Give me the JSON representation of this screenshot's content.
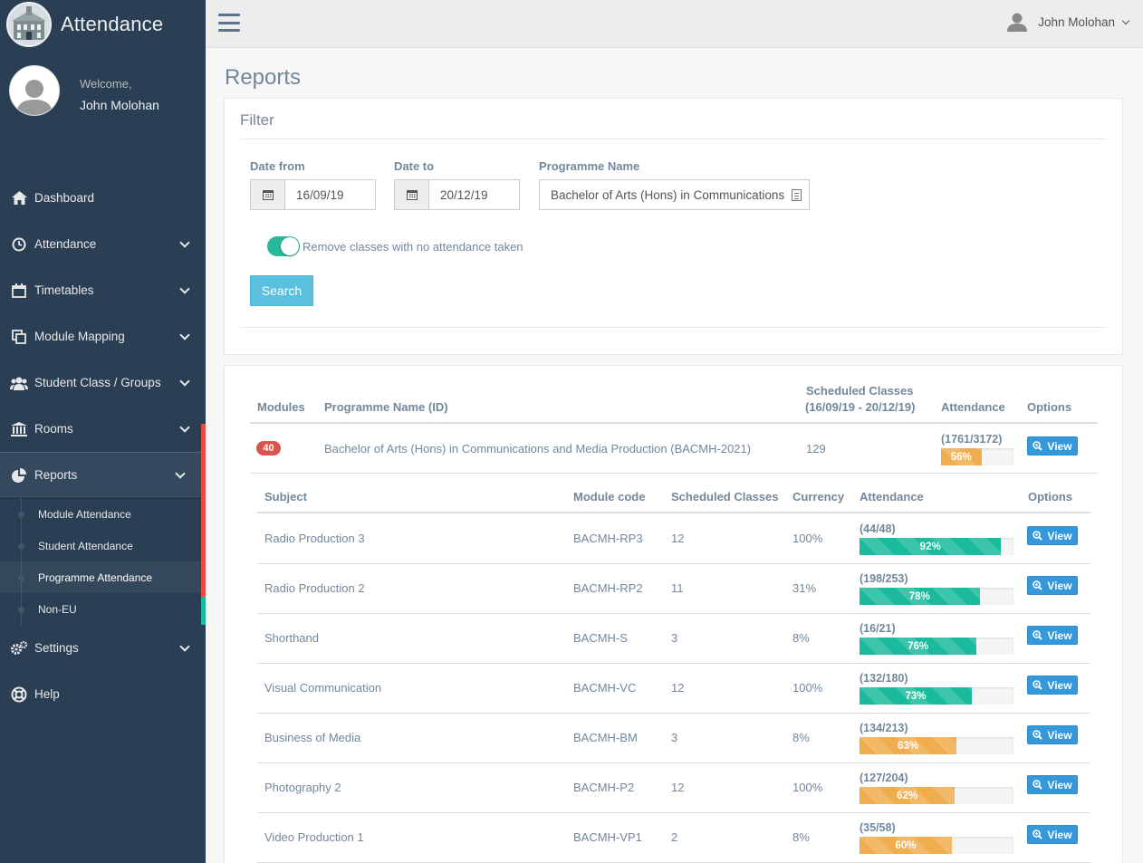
{
  "app": {
    "title": "Attendance"
  },
  "profile": {
    "welcome": "Welcome,",
    "name": "John Molohan"
  },
  "topnav": {
    "user_name": "John Molohan"
  },
  "sidebar": {
    "items": [
      {
        "label": "Dashboard",
        "icon": "home-icon"
      },
      {
        "label": "Attendance",
        "icon": "clock-icon"
      },
      {
        "label": "Timetables",
        "icon": "calendar-icon"
      },
      {
        "label": "Module Mapping",
        "icon": "clone-icon"
      },
      {
        "label": "Student Class / Groups",
        "icon": "users-icon"
      },
      {
        "label": "Rooms",
        "icon": "bank-icon"
      },
      {
        "label": "Reports",
        "icon": "pie-chart-icon"
      },
      {
        "label": "Settings",
        "icon": "cogs-icon"
      },
      {
        "label": "Help",
        "icon": "life-ring-icon"
      }
    ],
    "reports_sub": [
      "Module Attendance",
      "Student Attendance",
      "Programme Attendance",
      "Non-EU"
    ]
  },
  "page": {
    "title": "Reports"
  },
  "filter": {
    "title": "Filter",
    "date_from_label": "Date from",
    "date_from": "16/09/19",
    "date_to_label": "Date to",
    "date_to": "20/12/19",
    "programme_label": "Programme Name",
    "programme": "Bachelor of Arts (Hons) in Communications",
    "toggle_label": "Remove classes with no attendance taken",
    "search_label": "Search"
  },
  "programme_table": {
    "headers": {
      "modules": "Modules",
      "name": "Programme Name (ID)",
      "scheduled_line1": "Scheduled Classes",
      "scheduled_line2": "(16/09/19 - 20/12/19)",
      "attendance": "Attendance",
      "options": "Options"
    },
    "row": {
      "modules": "40",
      "name": "Bachelor of Arts (Hons) in Communications and Media Production (BACMH-2021)",
      "scheduled": "129",
      "count": "(1761/3172)",
      "percent": 56,
      "percent_label": "56%",
      "color": "orange",
      "view": "View"
    }
  },
  "module_table": {
    "headers": {
      "subject": "Subject",
      "code": "Module code",
      "scheduled": "Scheduled Classes",
      "currency": "Currency",
      "attendance": "Attendance",
      "options": "Options"
    },
    "rows": [
      {
        "subject": "Radio Production 3",
        "code": "BACMH-RP3",
        "scheduled": "12",
        "currency": "100%",
        "count": "(44/48)",
        "percent": 92,
        "percent_label": "92%",
        "color": "green",
        "view": "View"
      },
      {
        "subject": "Radio Production 2",
        "code": "BACMH-RP2",
        "scheduled": "11",
        "currency": "31%",
        "count": "(198/253)",
        "percent": 78,
        "percent_label": "78%",
        "color": "green",
        "view": "View"
      },
      {
        "subject": "Shorthand",
        "code": "BACMH-S",
        "scheduled": "3",
        "currency": "8%",
        "count": "(16/21)",
        "percent": 76,
        "percent_label": "76%",
        "color": "green",
        "view": "View"
      },
      {
        "subject": "Visual Communication",
        "code": "BACMH-VC",
        "scheduled": "12",
        "currency": "100%",
        "count": "(132/180)",
        "percent": 73,
        "percent_label": "73%",
        "color": "green",
        "view": "View"
      },
      {
        "subject": "Business of Media",
        "code": "BACMH-BM",
        "scheduled": "3",
        "currency": "8%",
        "count": "(134/213)",
        "percent": 63,
        "percent_label": "63%",
        "color": "orange",
        "view": "View"
      },
      {
        "subject": "Photography 2",
        "code": "BACMH-P2",
        "scheduled": "12",
        "currency": "100%",
        "count": "(127/204)",
        "percent": 62,
        "percent_label": "62%",
        "color": "orange",
        "view": "View"
      },
      {
        "subject": "Video Production 1",
        "code": "BACMH-VP1",
        "scheduled": "2",
        "currency": "8%",
        "count": "(35/58)",
        "percent": 60,
        "percent_label": "60%",
        "color": "orange",
        "view": "View"
      }
    ]
  },
  "colors": {
    "sidebar_bg": "#2a3f54",
    "accent": "#1abb9c",
    "danger": "#d9534f",
    "warning": "#f0ad4e",
    "info": "#5bc0de",
    "primary": "#3498db"
  }
}
